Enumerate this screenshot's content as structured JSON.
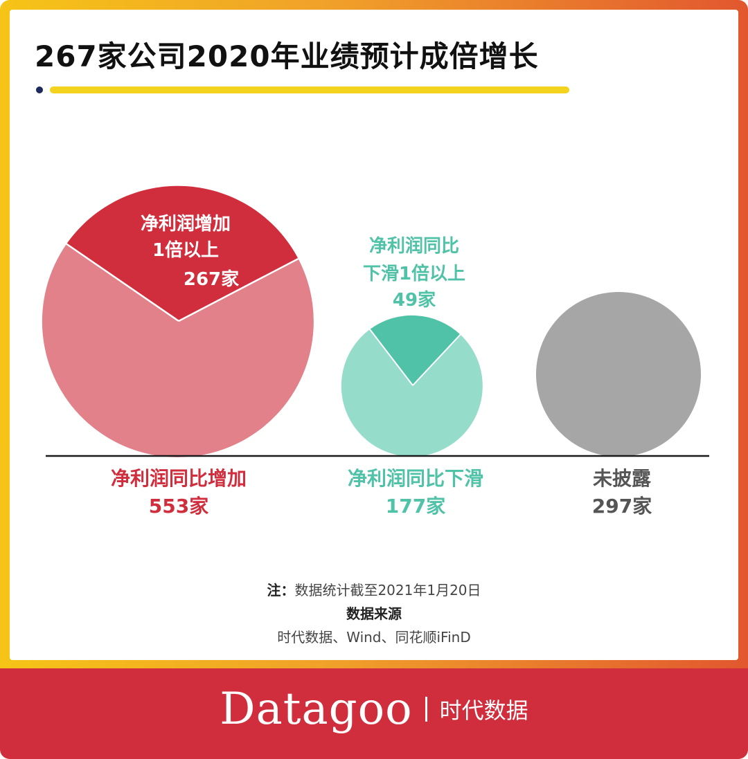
{
  "title": "267家公司2020年业绩预计成倍增长",
  "notes": {
    "note_prefix": "注：",
    "note_text": "数据统计截至2021年1月20日",
    "source_title": "数据来源",
    "source_text": "时代数据、Wind、同花顺iFinD"
  },
  "brand": {
    "logo": "Datagoo",
    "sub": "时代数据"
  },
  "colors": {
    "red": "#d12e3d",
    "red_light": "#e2818a",
    "green": "#4fc2a7",
    "green_light": "#96dcca",
    "gray": "#a6a6a6",
    "label_gray": "#555555"
  },
  "chart_data": {
    "type": "pie",
    "unit": "家",
    "groups": [
      {
        "label": "净利润同比增加",
        "total": 553,
        "total_text": "553家",
        "highlight": {
          "label_lines": [
            "净利润增加",
            "1倍以上"
          ],
          "value": 267,
          "value_text": "267家"
        },
        "color": "#e2818a",
        "highlight_color": "#d12e3d",
        "label_color": "#d12e3d"
      },
      {
        "label": "净利润同比下滑",
        "total": 177,
        "total_text": "177家",
        "highlight": {
          "label_lines": [
            "净利润同比",
            "下滑1倍以上"
          ],
          "value": 49,
          "value_text": "49家"
        },
        "color": "#96dcca",
        "highlight_color": "#4fc2a7",
        "label_color": "#4fc2a7"
      },
      {
        "label": "未披露",
        "total": 297,
        "total_text": "297家",
        "highlight": null,
        "color": "#a6a6a6",
        "highlight_color": null,
        "label_color": "#555555"
      }
    ]
  }
}
